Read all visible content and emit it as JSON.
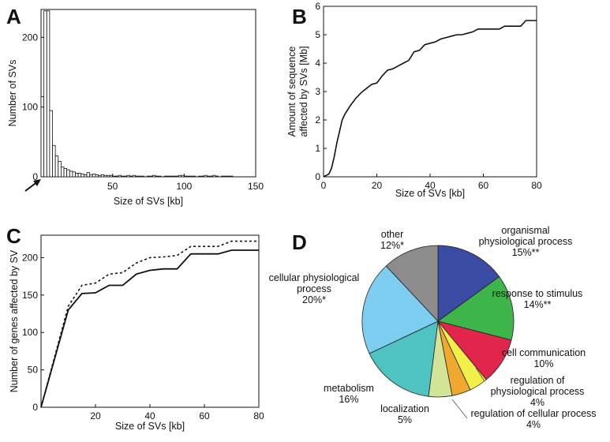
{
  "chart_data": [
    {
      "panel": "A",
      "type": "bar",
      "xlabel": "Size of SVs [kb]",
      "ylabel": "Number of SVs",
      "xlim": [
        0,
        150
      ],
      "ylim": [
        0,
        240
      ],
      "xticks": [
        "50",
        "100",
        "150"
      ],
      "yticks": [
        "0",
        "100",
        "200"
      ],
      "bin_width_kb": 2,
      "values": [
        115,
        238,
        238,
        95,
        45,
        30,
        22,
        14,
        12,
        10,
        8,
        7,
        5,
        5,
        4,
        3,
        6,
        3,
        4,
        3,
        2,
        3,
        2,
        2,
        2,
        1,
        1,
        2,
        1,
        1,
        2,
        1,
        2,
        1,
        1,
        1,
        0,
        1,
        1,
        2,
        1,
        1,
        0,
        1,
        1,
        1,
        1,
        1,
        2,
        2,
        1,
        1,
        1,
        1,
        0,
        1,
        1,
        2,
        1,
        1,
        2,
        1,
        0,
        1,
        1,
        1,
        1,
        0
      ]
    },
    {
      "panel": "B",
      "type": "line",
      "xlabel": "Size of SVs [kb]",
      "ylabel": "Amount of sequence affected by SVs [Mb]",
      "xlim": [
        0,
        80
      ],
      "ylim": [
        0,
        6
      ],
      "xticks": [
        "0",
        "20",
        "40",
        "60",
        "80"
      ],
      "yticks": [
        "0",
        "1",
        "2",
        "3",
        "4",
        "5",
        "6"
      ],
      "x": [
        0,
        2,
        3,
        4,
        5,
        6,
        7,
        8,
        10,
        12,
        14,
        16,
        18,
        20,
        22,
        24,
        26,
        28,
        30,
        32,
        34,
        36,
        38,
        40,
        42,
        44,
        46,
        48,
        50,
        52,
        54,
        56,
        58,
        60,
        62,
        64,
        66,
        68,
        70,
        72,
        74,
        76,
        78,
        80
      ],
      "y": [
        0,
        0.1,
        0.3,
        0.7,
        1.2,
        1.6,
        2.0,
        2.2,
        2.5,
        2.75,
        2.95,
        3.1,
        3.25,
        3.3,
        3.55,
        3.75,
        3.8,
        3.9,
        4.0,
        4.1,
        4.4,
        4.45,
        4.65,
        4.7,
        4.75,
        4.85,
        4.9,
        4.95,
        5.0,
        5.0,
        5.05,
        5.1,
        5.2,
        5.2,
        5.2,
        5.2,
        5.2,
        5.3,
        5.3,
        5.3,
        5.3,
        5.5,
        5.5,
        5.5
      ]
    },
    {
      "panel": "C",
      "type": "line",
      "xlabel": "Size of SVs [kb]",
      "ylabel": "Number of genes affected by SV",
      "xlim": [
        0,
        80
      ],
      "ylim": [
        0,
        230
      ],
      "xticks": [
        "20",
        "40",
        "60",
        "80"
      ],
      "yticks": [
        "0",
        "50",
        "100",
        "150",
        "200"
      ],
      "series": [
        {
          "style": "solid",
          "x": [
            0,
            10,
            15,
            20,
            25,
            30,
            35,
            40,
            45,
            50,
            55,
            60,
            65,
            70,
            75,
            80
          ],
          "y": [
            0,
            130,
            152,
            153,
            163,
            163,
            178,
            183,
            185,
            185,
            205,
            205,
            205,
            210,
            210,
            210
          ]
        },
        {
          "style": "dotted",
          "x": [
            0,
            10,
            15,
            20,
            25,
            30,
            35,
            40,
            45,
            50,
            55,
            60,
            65,
            70,
            75,
            80
          ],
          "y": [
            0,
            135,
            163,
            166,
            178,
            180,
            193,
            200,
            201,
            203,
            215,
            215,
            215,
            222,
            222,
            222
          ]
        }
      ]
    },
    {
      "panel": "D",
      "type": "pie",
      "slices": [
        {
          "label": "organismal physiological process",
          "lines": [
            "organismal",
            "physiological process",
            "15%**"
          ],
          "value": 15,
          "color": "#3b4aa3"
        },
        {
          "label": "response to stimulus",
          "lines": [
            "response to stimulus",
            "14%**"
          ],
          "value": 14,
          "color": "#3db54a"
        },
        {
          "label": "cell communication",
          "lines": [
            "cell communication",
            "10%"
          ],
          "value": 10,
          "color": "#e2254a"
        },
        {
          "label": "regulation of physiological process",
          "lines": [
            "regulation of",
            "physiological process",
            "4%"
          ],
          "value": 4,
          "color": "#f2ef48"
        },
        {
          "label": "regulation of cellular process",
          "lines": [
            "regulation of cellular process",
            "4%"
          ],
          "value": 4,
          "color": "#f0a830"
        },
        {
          "label": "localization",
          "lines": [
            "localization",
            "5%"
          ],
          "value": 5,
          "color": "#d4e496"
        },
        {
          "label": "metabolism",
          "lines": [
            "metabolism",
            "16%"
          ],
          "value": 16,
          "color": "#4fc2c2"
        },
        {
          "label": "cellular physiological process",
          "lines": [
            "cellular physiological",
            "process",
            "20%*"
          ],
          "value": 20,
          "color": "#7ccdf0"
        },
        {
          "label": "other",
          "lines": [
            "other",
            "12%*"
          ],
          "value": 12,
          "color": "#8c8c8c"
        }
      ]
    }
  ],
  "panels": {
    "a": "A",
    "b": "B",
    "c": "C",
    "d": "D"
  }
}
